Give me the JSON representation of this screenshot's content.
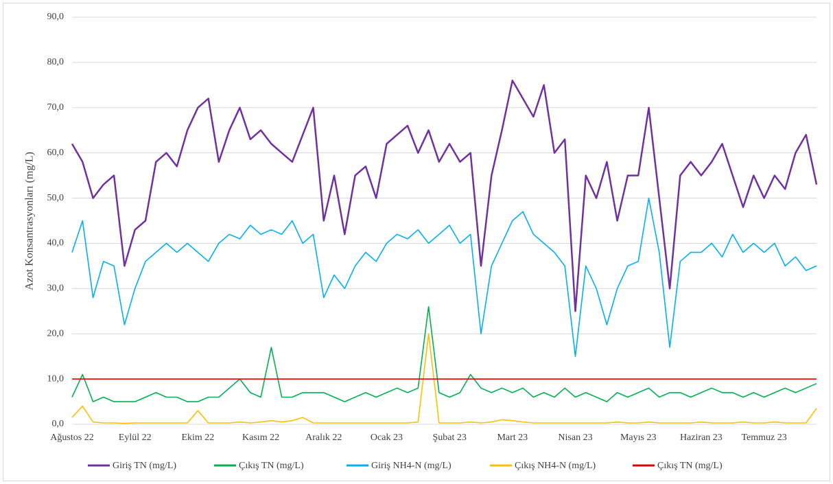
{
  "chart_data": {
    "type": "line",
    "y_label": "Azot Konsantrasyonları (mg/L)",
    "categories": [
      "Ağustos 22",
      null,
      null,
      null,
      null,
      null,
      "Eylül 22",
      null,
      null,
      null,
      null,
      null,
      "Ekim 22",
      null,
      null,
      null,
      null,
      null,
      "Kasım 22",
      null,
      null,
      null,
      null,
      null,
      "Aralık 22",
      null,
      null,
      null,
      null,
      null,
      "Ocak 23",
      null,
      null,
      null,
      null,
      null,
      "Şubat 23",
      null,
      null,
      null,
      null,
      null,
      "Mart 23",
      null,
      null,
      null,
      null,
      null,
      "Nisan 23",
      null,
      null,
      null,
      null,
      null,
      "Mayıs 23",
      null,
      null,
      null,
      null,
      null,
      "Haziran 23",
      null,
      null,
      null,
      null,
      null,
      "Temmuz 23",
      null,
      null,
      null,
      null,
      null
    ],
    "series": [
      {
        "name": "Giriş TN (mg/L)",
        "color": "#7030a0",
        "values": [
          62,
          58,
          50,
          53,
          55,
          35,
          43,
          45,
          58,
          60,
          57,
          65,
          70,
          72,
          58,
          65,
          70,
          63,
          65,
          62,
          60,
          58,
          64,
          70,
          45,
          55,
          42,
          55,
          57,
          50,
          62,
          64,
          66,
          60,
          65,
          58,
          62,
          58,
          60,
          35,
          55,
          65,
          76,
          72,
          68,
          75,
          60,
          63,
          25,
          55,
          50,
          58,
          45,
          55,
          55,
          70,
          50,
          30,
          55,
          58,
          55,
          58,
          62,
          55,
          48,
          55,
          50,
          55,
          52,
          60,
          64,
          53
        ]
      },
      {
        "name": "Çıkış TN (mg/L)",
        "color": "#00b050",
        "values": [
          6,
          11,
          5,
          6,
          5,
          5,
          5,
          6,
          7,
          6,
          6,
          5,
          5,
          6,
          6,
          8,
          10,
          7,
          6,
          17,
          6,
          6,
          7,
          7,
          7,
          6,
          5,
          6,
          7,
          6,
          7,
          8,
          7,
          8,
          26,
          7,
          6,
          7,
          11,
          8,
          7,
          8,
          7,
          8,
          6,
          7,
          6,
          8,
          6,
          7,
          6,
          5,
          7,
          6,
          7,
          8,
          6,
          7,
          7,
          6,
          7,
          8,
          7,
          7,
          6,
          7,
          6,
          7,
          8,
          7,
          8,
          9
        ]
      },
      {
        "name": "Giriş NH4-N (mg/L)",
        "color": "#00b0f0",
        "values": [
          38,
          45,
          28,
          36,
          35,
          22,
          30,
          36,
          38,
          40,
          38,
          40,
          38,
          36,
          40,
          42,
          41,
          44,
          42,
          43,
          42,
          45,
          40,
          42,
          28,
          33,
          30,
          35,
          38,
          36,
          40,
          42,
          41,
          43,
          40,
          42,
          44,
          40,
          42,
          20,
          35,
          40,
          45,
          47,
          42,
          40,
          38,
          35,
          15,
          35,
          30,
          22,
          30,
          35,
          36,
          50,
          38,
          17,
          36,
          38,
          38,
          40,
          37,
          42,
          38,
          40,
          38,
          40,
          35,
          37,
          34,
          35
        ]
      },
      {
        "name": "Çıkış NH4-N (mg/L)",
        "color": "#ffc000",
        "values": [
          1.5,
          4,
          0.5,
          0.3,
          0.3,
          0.2,
          0.3,
          0.3,
          0.3,
          0.3,
          0.3,
          0.3,
          3,
          0.3,
          0.3,
          0.3,
          0.5,
          0.3,
          0.5,
          0.8,
          0.5,
          0.8,
          1.5,
          0.3,
          0.3,
          0.3,
          0.3,
          0.3,
          0.3,
          0.3,
          0.3,
          0.3,
          0.3,
          0.5,
          20,
          0.3,
          0.3,
          0.3,
          0.5,
          0.3,
          0.5,
          1,
          0.8,
          0.5,
          0.3,
          0.3,
          0.3,
          0.3,
          0.3,
          0.3,
          0.3,
          0.3,
          0.5,
          0.3,
          0.3,
          0.5,
          0.3,
          0.3,
          0.3,
          0.3,
          0.5,
          0.3,
          0.3,
          0.3,
          0.5,
          0.3,
          0.3,
          0.5,
          0.3,
          0.3,
          0.3,
          3.5
        ]
      },
      {
        "name": "Çıkış TN (mg/L)",
        "color": "#e00000",
        "values": [
          10,
          10,
          10,
          10,
          10,
          10,
          10,
          10,
          10,
          10,
          10,
          10,
          10,
          10,
          10,
          10,
          10,
          10,
          10,
          10,
          10,
          10,
          10,
          10,
          10,
          10,
          10,
          10,
          10,
          10,
          10,
          10,
          10,
          10,
          10,
          10,
          10,
          10,
          10,
          10,
          10,
          10,
          10,
          10,
          10,
          10,
          10,
          10,
          10,
          10,
          10,
          10,
          10,
          10,
          10,
          10,
          10,
          10,
          10,
          10,
          10,
          10,
          10,
          10,
          10,
          10,
          10,
          10,
          10,
          10,
          10,
          10
        ]
      }
    ],
    "ylim": [
      0,
      90
    ],
    "yticks": [
      {
        "value": 0,
        "label": "0,0"
      },
      {
        "value": 10,
        "label": "10,0"
      },
      {
        "value": 20,
        "label": "20,0"
      },
      {
        "value": 30,
        "label": "30,0"
      },
      {
        "value": 40,
        "label": "40,0"
      },
      {
        "value": 50,
        "label": "50,0"
      },
      {
        "value": 60,
        "label": "60,0"
      },
      {
        "value": 70,
        "label": "70,0"
      },
      {
        "value": 80,
        "label": "80,0"
      },
      {
        "value": 90,
        "label": "90,0"
      }
    ],
    "grid": true
  }
}
